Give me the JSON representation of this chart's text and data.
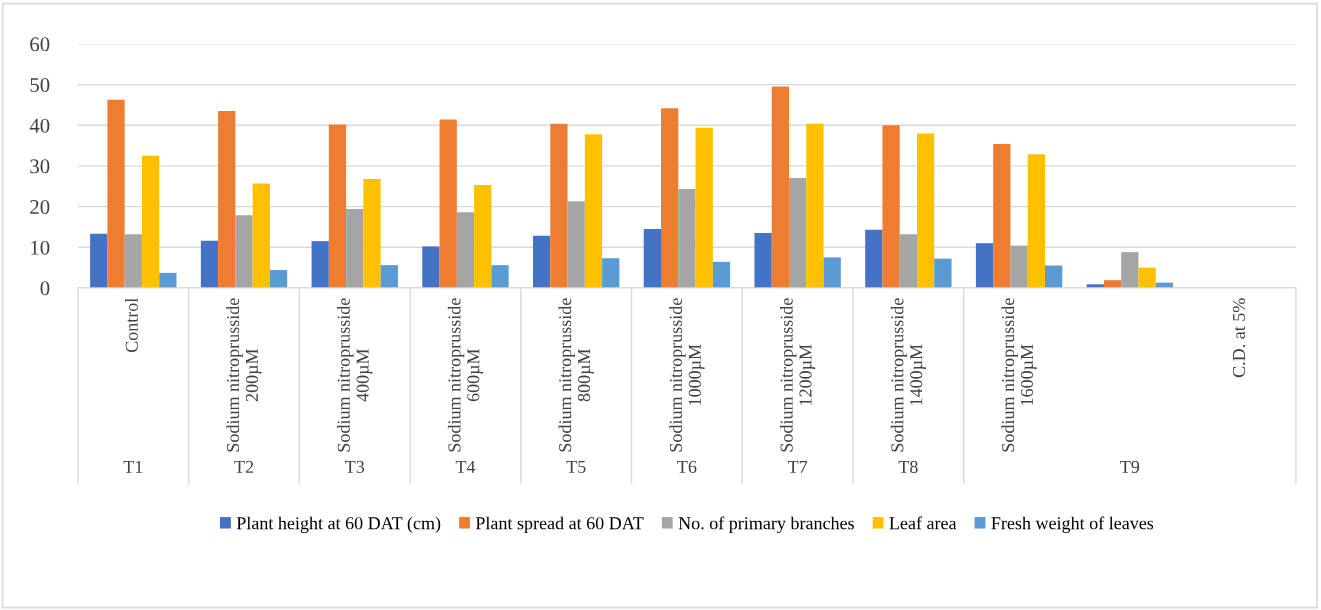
{
  "chart_data": {
    "type": "bar",
    "categories": [
      "Control",
      "Sodium nitroprusside\n200µM",
      "Sodium nitroprusside\n400µM",
      "Sodium nitroprusside\n600µM",
      "Sodium nitroprusside\n800µM",
      "Sodium nitroprusside\n1000µM",
      "Sodium nitroprusside\n1200µM",
      "Sodium nitroprusside\n1400µM",
      "Sodium nitroprusside\n1600µM",
      null,
      "C.D. at 5%"
    ],
    "series": [
      {
        "name": "Plant height at 60 DAT (cm)",
        "color": "#4472c4",
        "values": [
          13.3,
          11.6,
          11.5,
          10.2,
          12.8,
          14.5,
          13.5,
          14.3,
          11.0,
          0.9,
          null
        ]
      },
      {
        "name": "Plant spread at 60 DAT",
        "color": "#ed7d31",
        "values": [
          46.3,
          43.5,
          40.2,
          41.4,
          40.4,
          44.2,
          49.5,
          40.0,
          35.4,
          1.9,
          null
        ]
      },
      {
        "name": "No. of primary branches",
        "color": "#a5a5a5",
        "values": [
          13.2,
          17.9,
          19.4,
          18.6,
          21.3,
          24.3,
          27.0,
          13.2,
          10.4,
          8.8,
          null
        ]
      },
      {
        "name": "Leaf area",
        "color": "#ffc000",
        "values": [
          32.5,
          25.7,
          26.8,
          25.3,
          37.8,
          39.4,
          40.4,
          38.0,
          32.9,
          5.0,
          null
        ]
      },
      {
        "name": "Fresh weight of leaves",
        "color": "#5b9bd5",
        "values": [
          3.7,
          4.4,
          5.6,
          5.6,
          7.3,
          6.4,
          7.5,
          7.2,
          5.5,
          1.3,
          null
        ]
      }
    ],
    "annotations": [
      "T1",
      "T2",
      "T3",
      "T4",
      "T5",
      "T6",
      "T7",
      "T8",
      "T9"
    ],
    "ylim": [
      0,
      60
    ],
    "yticks": [
      0,
      10,
      20,
      30,
      40,
      50,
      60
    ],
    "grid": "y",
    "legend": "bottom"
  }
}
